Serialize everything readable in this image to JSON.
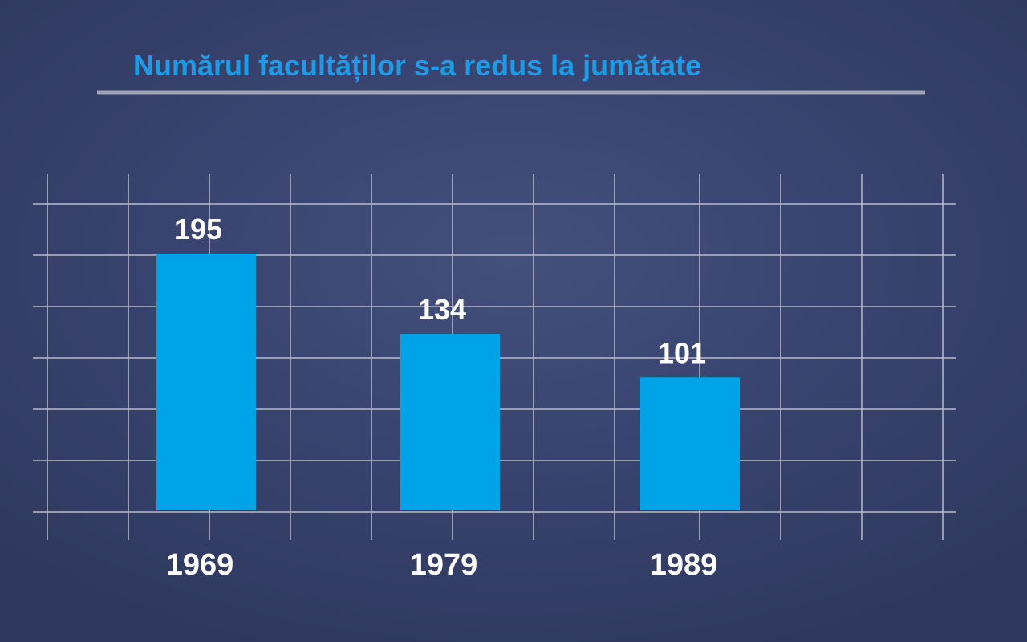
{
  "chart_data": {
    "type": "bar",
    "title": "Numărul facultăților s-a redus la jumătate",
    "categories": [
      "1969",
      "1979",
      "1989"
    ],
    "values": [
      195,
      134,
      101
    ],
    "grid": true,
    "legend": "none"
  },
  "colors": {
    "title": "#1e9be6",
    "bar": "#00a2e8",
    "grid": "#b9bccb",
    "title_rule": "#9ea3b8",
    "text": "#ffffff"
  }
}
